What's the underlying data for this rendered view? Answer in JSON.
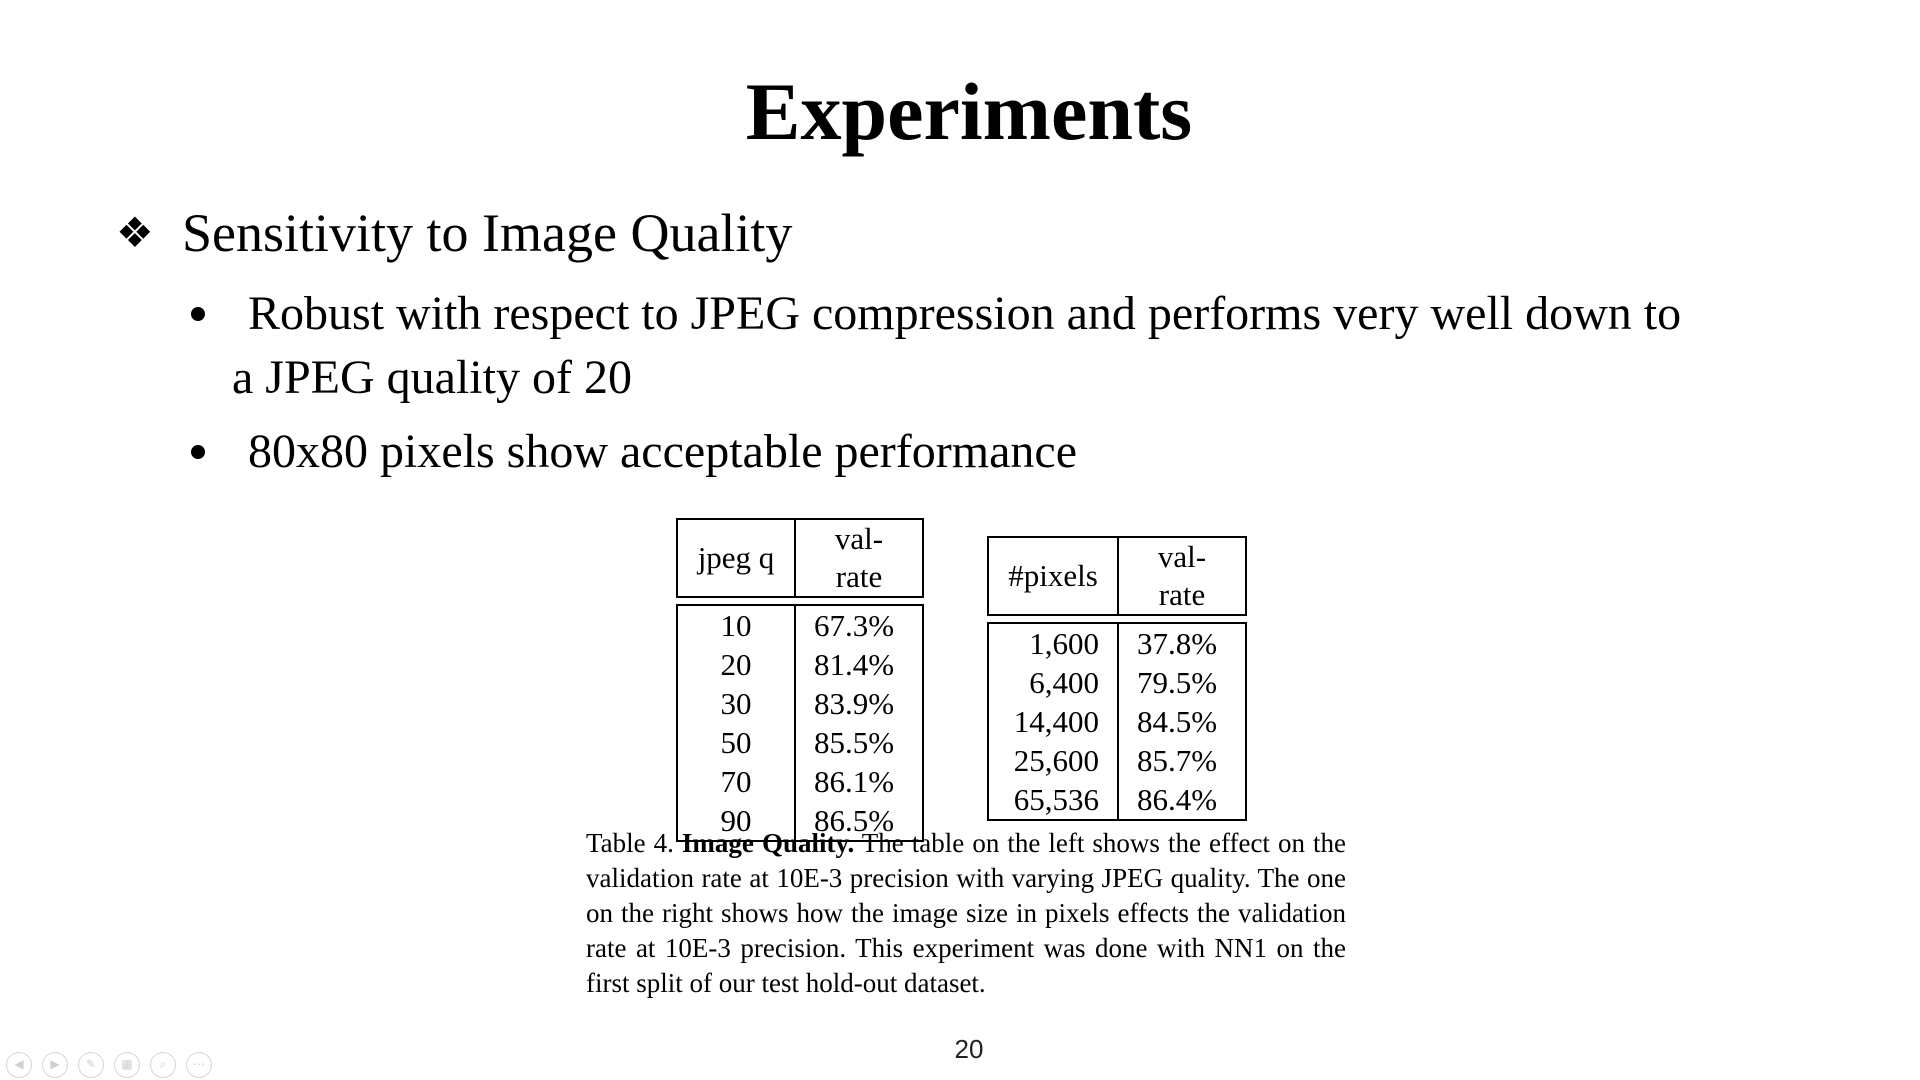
{
  "slide": {
    "title": "Experiments",
    "heading": {
      "bullet": "❖",
      "text": "Sensitivity to Image Quality"
    },
    "bullets": [
      {
        "line1": "Robust with respect to JPEG compression and performs very well down to",
        "line2": "a JPEG quality of 20"
      },
      {
        "line1": "80x80 pixels show acceptable performance"
      }
    ],
    "table_jpeg": {
      "headers": [
        "jpeg q",
        "val-rate"
      ],
      "rows": [
        [
          "10",
          "67.3%"
        ],
        [
          "20",
          "81.4%"
        ],
        [
          "30",
          "83.9%"
        ],
        [
          "50",
          "85.5%"
        ],
        [
          "70",
          "86.1%"
        ],
        [
          "90",
          "86.5%"
        ]
      ]
    },
    "table_pixels": {
      "headers": [
        "#pixels",
        "val-rate"
      ],
      "rows": [
        [
          "1,600",
          "37.8%"
        ],
        [
          "6,400",
          "79.5%"
        ],
        [
          "14,400",
          "84.5%"
        ],
        [
          "25,600",
          "85.7%"
        ],
        [
          "65,536",
          "86.4%"
        ]
      ]
    },
    "caption": {
      "prefix": "Table 4.",
      "bold": "Image Quality.",
      "text": "The table on the left shows the effect on the validation rate at 10E-3 precision with varying JPEG quality. The one on the right shows how the image size in pixels effects the validation rate at 10E-3 precision. This experiment was done with NN1 on the first split of our test hold-out dataset."
    },
    "page_number": "20"
  },
  "toolbar": {
    "buttons": [
      {
        "name": "prev-slide-icon",
        "glyph": "◀"
      },
      {
        "name": "next-slide-icon",
        "glyph": "▶"
      },
      {
        "name": "pen-icon",
        "glyph": "✎"
      },
      {
        "name": "slides-grid-icon",
        "glyph": "▦"
      },
      {
        "name": "zoom-icon",
        "glyph": "⌕"
      },
      {
        "name": "more-options-icon",
        "glyph": "⋯"
      }
    ]
  },
  "colors": {
    "background": "#ffffff",
    "text": "#000000",
    "toolbar_icon": "#cfcfcf"
  }
}
